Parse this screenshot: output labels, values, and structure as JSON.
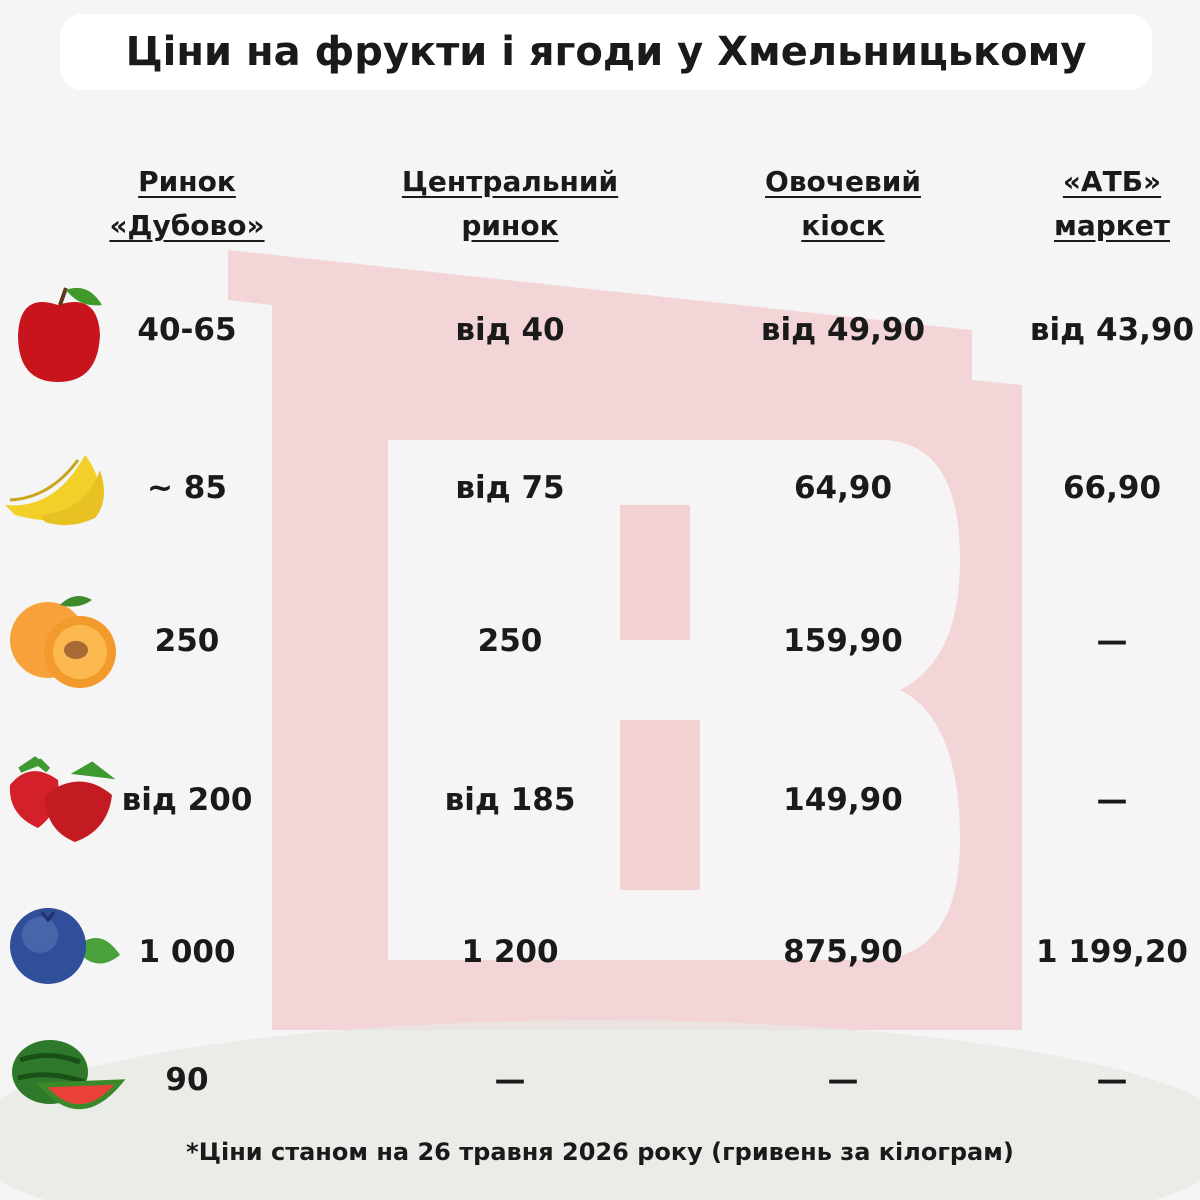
{
  "header": {
    "title": "Ціни на фрукти і ягоди у Хмельницькому"
  },
  "table": {
    "columns": [
      [
        "Ринок",
        "«Дубово»"
      ],
      [
        "Центральний",
        "ринок"
      ],
      [
        "Овочевий",
        "кіоск"
      ],
      [
        "«АТБ»",
        "маркет"
      ]
    ],
    "rows": [
      [
        "40-65",
        "від 40",
        "від 49,90",
        "від 43,90"
      ],
      [
        "~ 85",
        "від 75",
        "64,90",
        "66,90"
      ],
      [
        "250",
        "250",
        "159,90",
        "—"
      ],
      [
        "від 200",
        "від 185",
        "149,90",
        "—"
      ],
      [
        "1 000",
        "1 200",
        "875,90",
        "1 199,20"
      ],
      [
        "90",
        "—",
        "—",
        "—"
      ]
    ]
  },
  "footnote": "*Ціни станом на 26 травня 2026 року (гривень за кілограм)"
}
